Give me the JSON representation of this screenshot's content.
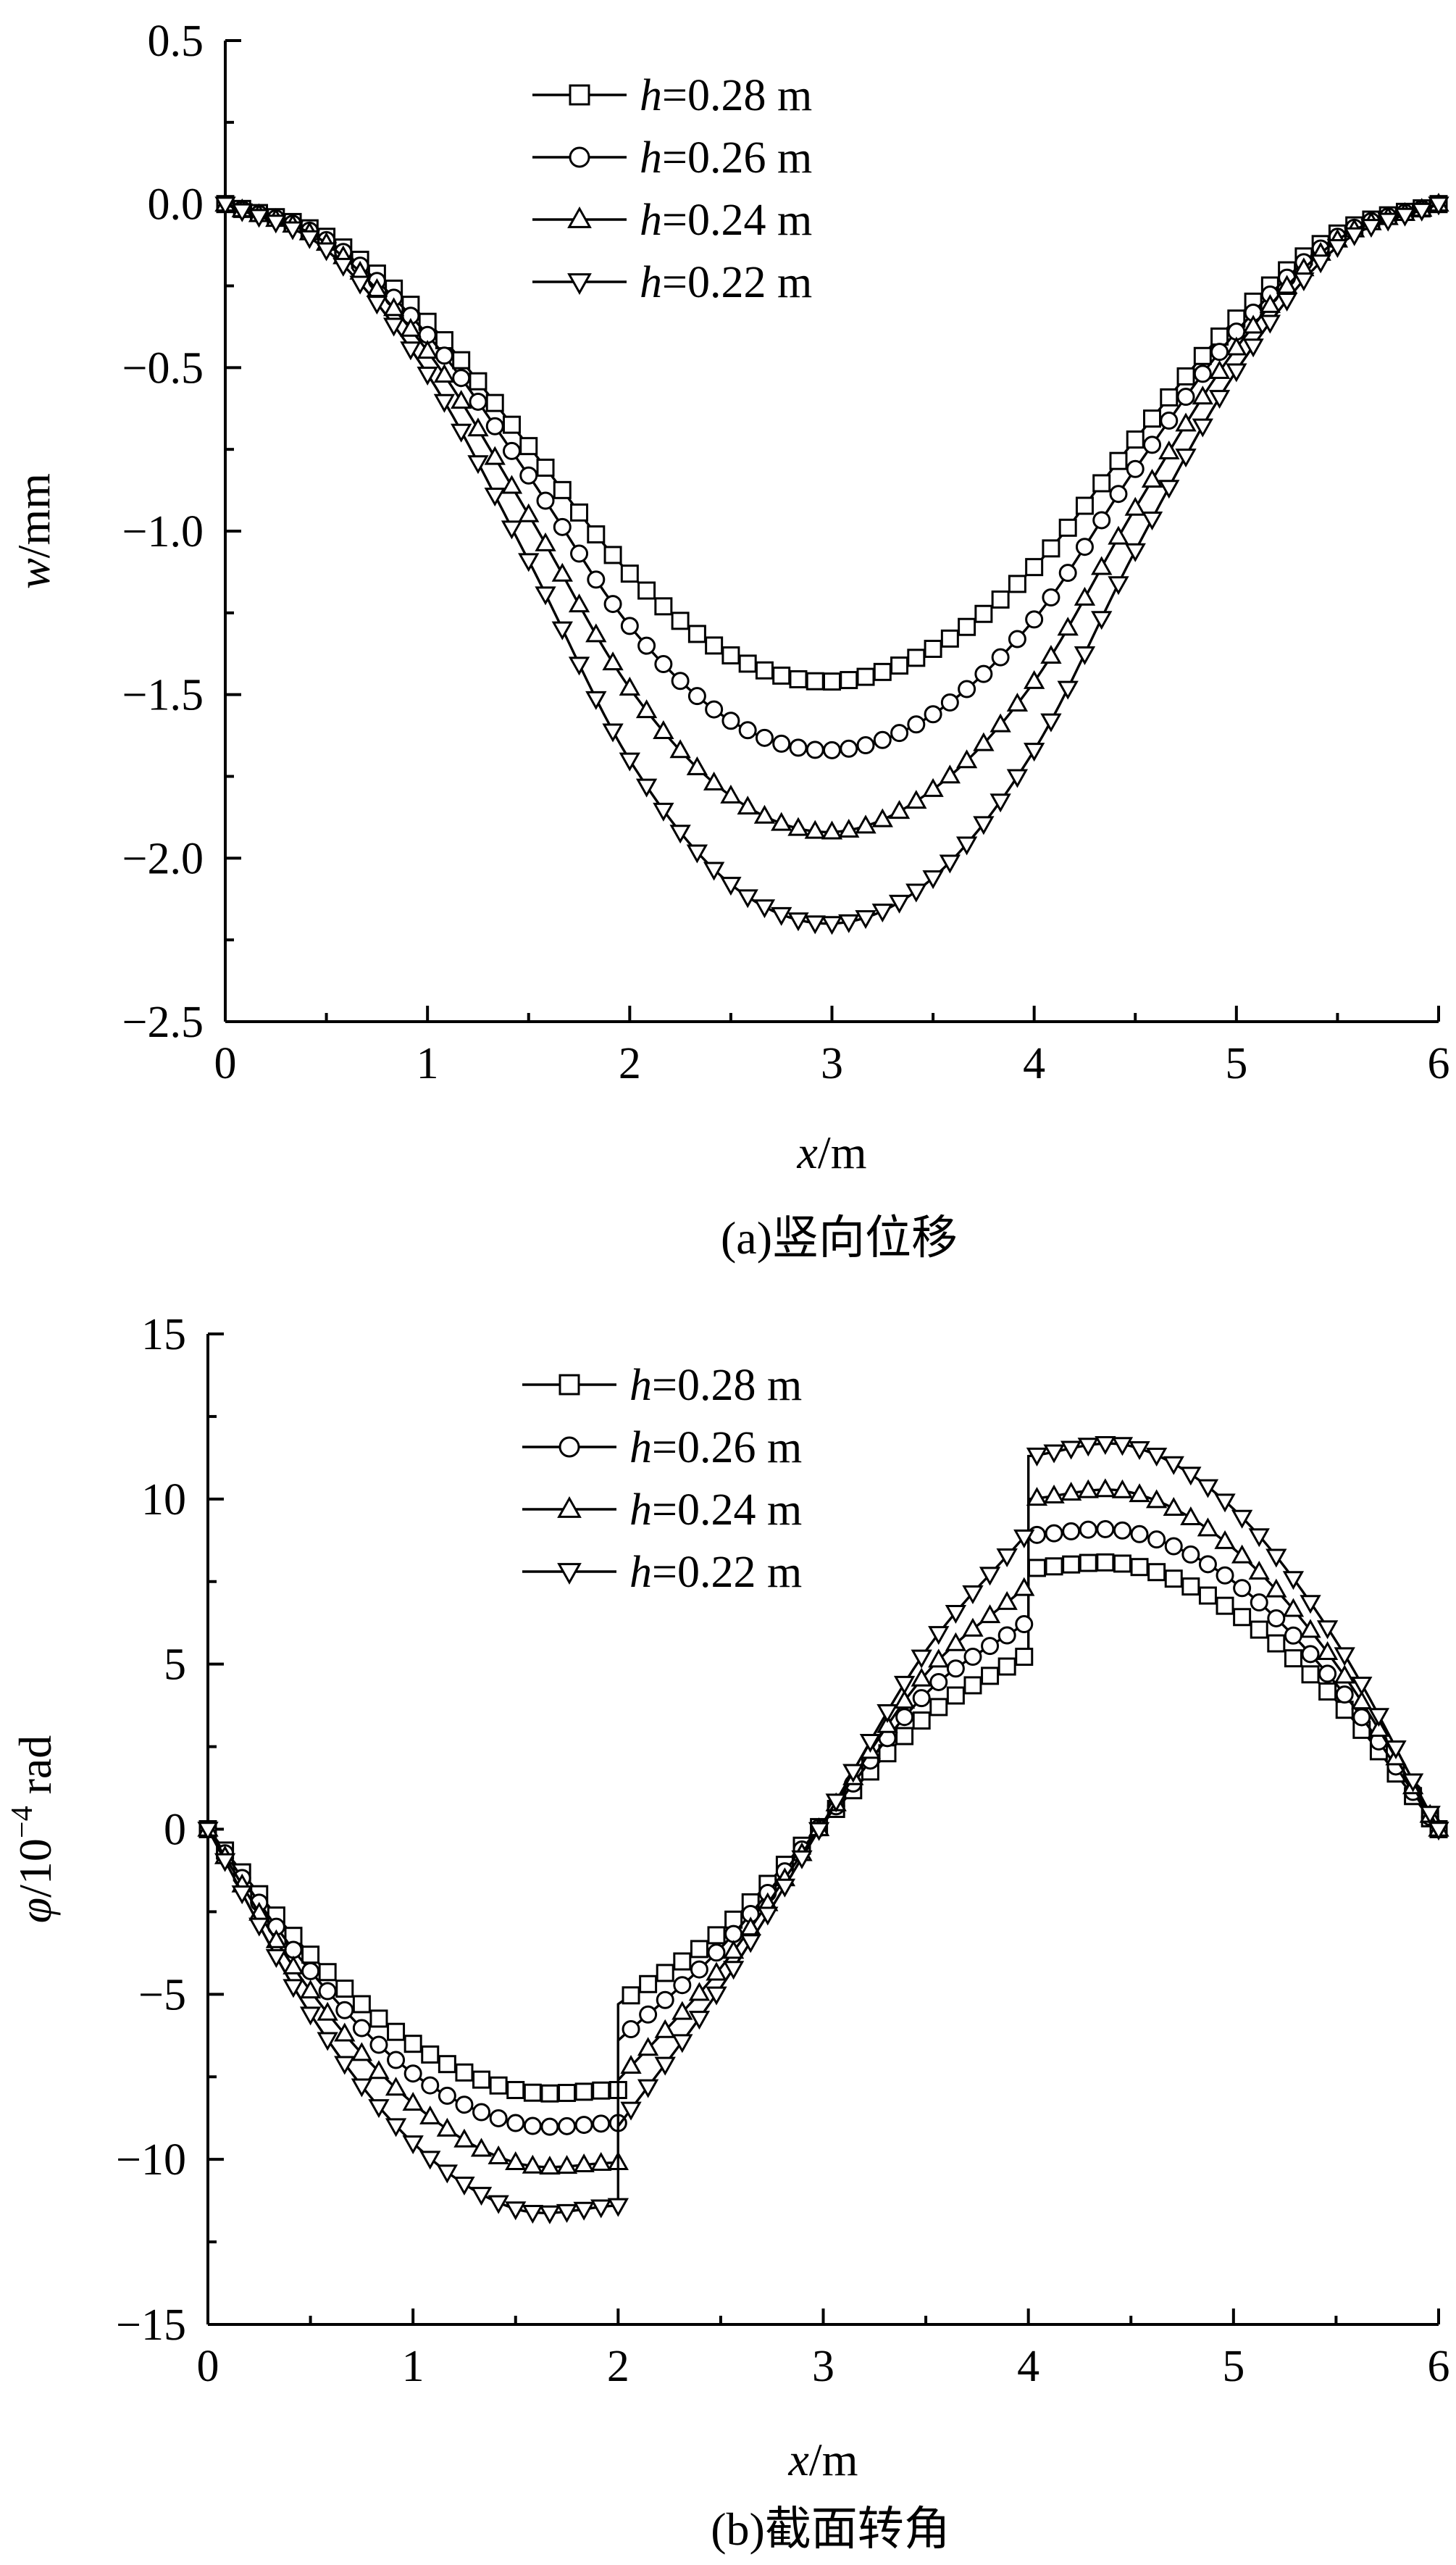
{
  "chart_data": [
    {
      "type": "line",
      "panel": "a",
      "caption": "(a)竖向位移",
      "title": "",
      "xlabel": "x/m",
      "xlabel_var": "x",
      "xlabel_unit": "/m",
      "ylabel": "w/mm",
      "ylabel_var": "w",
      "ylabel_unit": "/mm",
      "xlim": [
        0,
        6
      ],
      "ylim": [
        -2.5,
        0.5
      ],
      "xticks": [
        0,
        1,
        2,
        3,
        4,
        5,
        6
      ],
      "xtick_labels": [
        "0",
        "1",
        "2",
        "3",
        "4",
        "5",
        "6"
      ],
      "yticks": [
        0.5,
        0.0,
        -0.5,
        -1.0,
        -1.5,
        -2.0,
        -2.5
      ],
      "ytick_labels": [
        "0.5",
        "0.0",
        "−0.5",
        "−1.0",
        "−1.5",
        "−2.0",
        "−2.5"
      ],
      "grid": false,
      "legend_position": "top-center",
      "x": [
        0,
        0.5,
        1,
        1.5,
        2,
        2.5,
        3,
        3.5,
        4,
        4.5,
        5,
        5.5,
        6
      ],
      "series": [
        {
          "name": "h=0.28 m",
          "var": "h",
          "rest": "=0.28 m",
          "marker": "square",
          "values": [
            0,
            -0.1,
            -0.36,
            -0.74,
            -1.13,
            -1.38,
            -1.46,
            -1.36,
            -1.11,
            -0.72,
            -0.35,
            -0.09,
            0
          ]
        },
        {
          "name": "h=0.26 m",
          "var": "h",
          "rest": "=0.26 m",
          "marker": "circle",
          "values": [
            0,
            -0.11,
            -0.4,
            -0.83,
            -1.29,
            -1.58,
            -1.67,
            -1.56,
            -1.27,
            -0.81,
            -0.39,
            -0.1,
            0
          ]
        },
        {
          "name": "h=0.24 m",
          "var": "h",
          "rest": "=0.24 m",
          "marker": "triangle-up",
          "values": [
            0,
            -0.12,
            -0.45,
            -0.95,
            -1.48,
            -1.81,
            -1.92,
            -1.79,
            -1.46,
            -0.93,
            -0.44,
            -0.11,
            0
          ]
        },
        {
          "name": "h=0.22 m",
          "var": "h",
          "rest": "=0.22 m",
          "marker": "triangle-down",
          "values": [
            0,
            -0.14,
            -0.52,
            -1.09,
            -1.7,
            -2.08,
            -2.2,
            -2.06,
            -1.67,
            -1.06,
            -0.51,
            -0.13,
            0
          ]
        }
      ]
    },
    {
      "type": "line",
      "panel": "b",
      "caption": "(b)截面转角",
      "title": "",
      "xlabel": "x/m",
      "xlabel_var": "x",
      "xlabel_unit": "/m",
      "ylabel": "φ/10⁻⁴ rad",
      "ylabel_var": "φ",
      "ylabel_unit_base": "/10",
      "ylabel_unit_exp": "−4",
      "ylabel_unit_tail": " rad",
      "xlim": [
        0,
        6
      ],
      "ylim": [
        -15,
        15
      ],
      "xticks": [
        0,
        1,
        2,
        3,
        4,
        5,
        6
      ],
      "xtick_labels": [
        "0",
        "1",
        "2",
        "3",
        "4",
        "5",
        "6"
      ],
      "yticks": [
        15,
        10,
        5,
        0,
        -5,
        -10,
        -15
      ],
      "ytick_labels": [
        "15",
        "10",
        "5",
        "0",
        "−5",
        "−10",
        "−15"
      ],
      "grid": false,
      "legend_position": "top-center",
      "x": [
        0,
        0.5,
        1,
        1.5,
        2,
        2,
        2.5,
        3,
        3.5,
        4,
        4,
        4.5,
        5,
        5.5,
        6
      ],
      "series": [
        {
          "name": "h=0.28 m",
          "var": "h",
          "rest": "=0.28 m",
          "marker": "square",
          "values": [
            0,
            -3.8,
            -6.5,
            -7.9,
            -7.9,
            -5.3,
            -3.1,
            0.2,
            3.4,
            5.3,
            7.9,
            8.0,
            6.6,
            3.9,
            0
          ]
        },
        {
          "name": "h=0.26 m",
          "var": "h",
          "rest": "=0.26 m",
          "marker": "circle",
          "values": [
            0,
            -4.3,
            -7.4,
            -8.9,
            -8.9,
            -6.4,
            -3.6,
            0.2,
            4.1,
            6.3,
            8.9,
            9.0,
            7.5,
            4.4,
            0
          ]
        },
        {
          "name": "h=0.24 m",
          "var": "h",
          "rest": "=0.24 m",
          "marker": "triangle-up",
          "values": [
            0,
            -4.9,
            -8.3,
            -10.1,
            -10.1,
            -7.6,
            -4.2,
            0.2,
            4.7,
            7.4,
            10.0,
            10.2,
            8.5,
            5.0,
            0
          ]
        },
        {
          "name": "h=0.22 m",
          "var": "h",
          "rest": "=0.22 m",
          "marker": "triangle-down",
          "values": [
            0,
            -5.6,
            -9.5,
            -11.5,
            -11.4,
            -9.0,
            -4.8,
            0.2,
            5.4,
            9.0,
            11.3,
            11.6,
            9.7,
            5.7,
            0
          ]
        }
      ]
    }
  ]
}
